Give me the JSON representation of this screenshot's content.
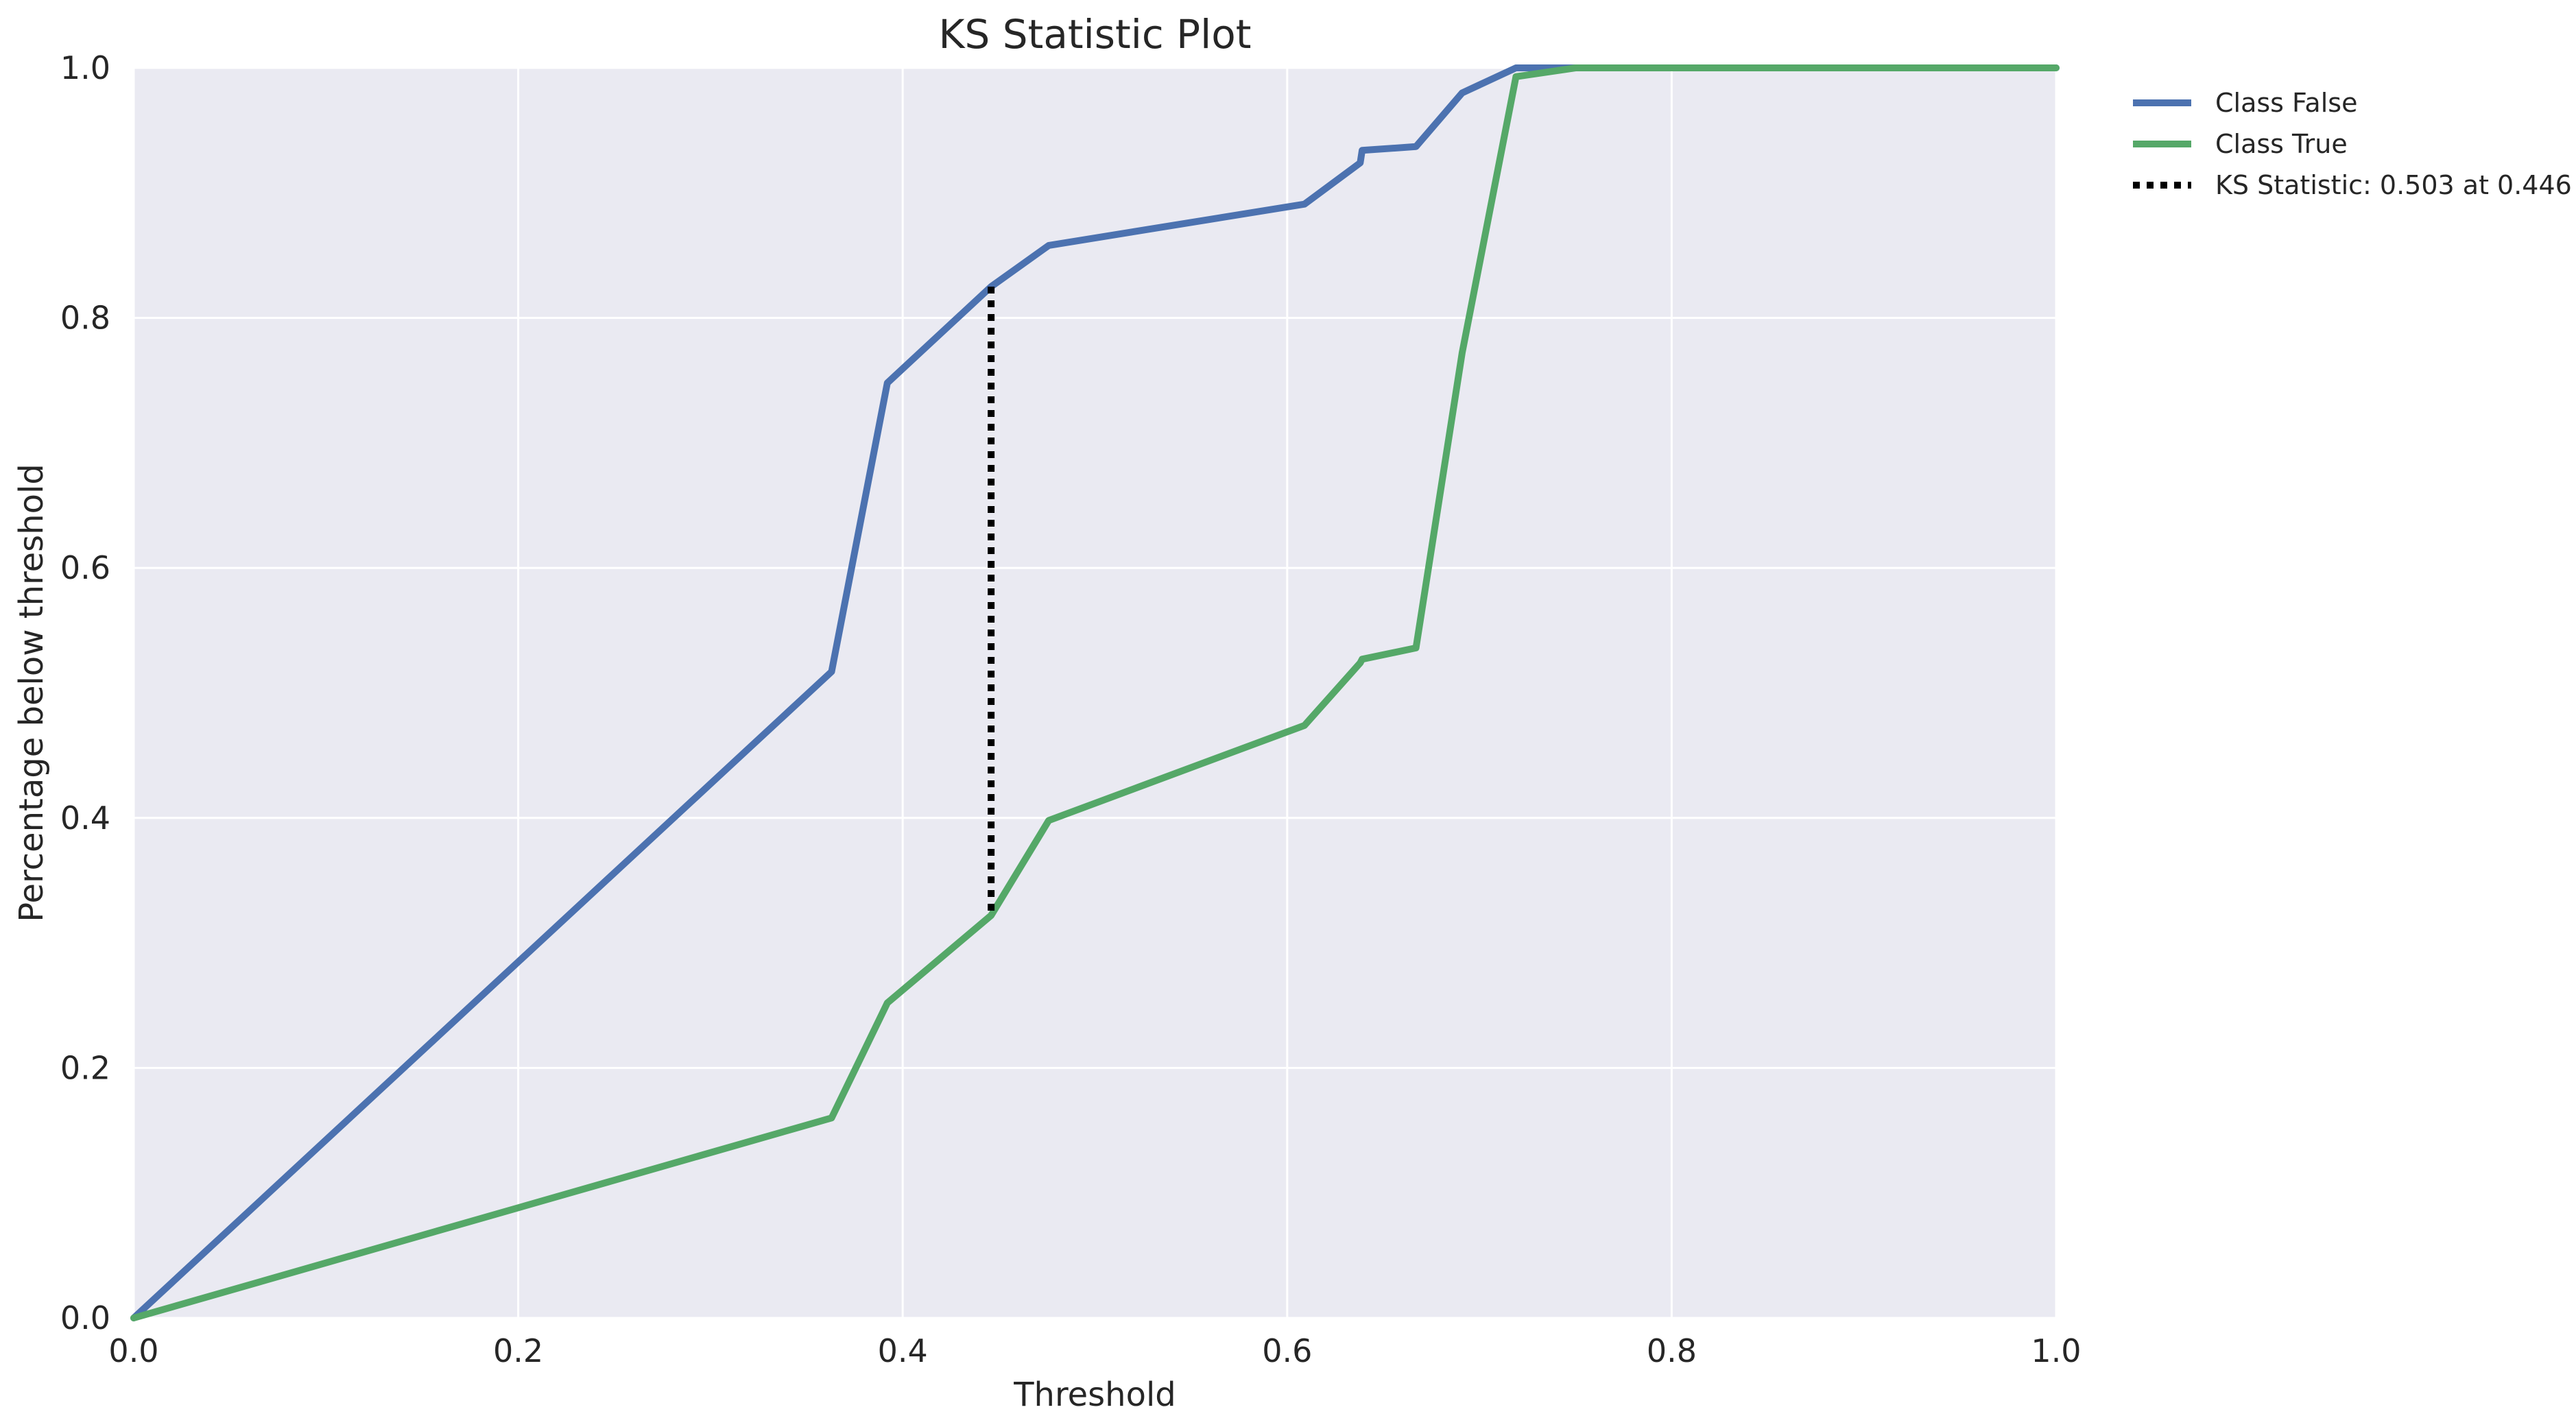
{
  "chart_data": {
    "type": "line",
    "title": "KS Statistic Plot",
    "xlabel": "Threshold",
    "ylabel": "Percentage below threshold",
    "xlim": [
      0.0,
      1.0
    ],
    "ylim": [
      0.0,
      1.0
    ],
    "x_ticks": [
      "0.0",
      "0.2",
      "0.4",
      "0.6",
      "0.8",
      "1.0"
    ],
    "y_ticks": [
      "0.0",
      "0.2",
      "0.4",
      "0.6",
      "0.8",
      "1.0"
    ],
    "grid": true,
    "legend_position": "outside-top-right",
    "background_color": "#EAEAF2",
    "grid_color": "#FFFFFF",
    "series": [
      {
        "name": "Class False",
        "color": "#4C72B0",
        "style": "solid",
        "x": [
          0.0,
          0.363,
          0.392,
          0.446,
          0.476,
          0.609,
          0.638,
          0.639,
          0.667,
          0.691,
          0.719,
          0.73,
          1.0
        ],
        "y": [
          0.0,
          0.517,
          0.748,
          0.825,
          0.858,
          0.891,
          0.924,
          0.934,
          0.937,
          0.98,
          1.0,
          1.0,
          1.0
        ]
      },
      {
        "name": "Class True",
        "color": "#55A868",
        "style": "solid",
        "x": [
          0.0,
          0.363,
          0.392,
          0.446,
          0.476,
          0.609,
          0.638,
          0.639,
          0.667,
          0.691,
          0.719,
          0.75,
          1.0
        ],
        "y": [
          0.0,
          0.16,
          0.252,
          0.322,
          0.398,
          0.474,
          0.524,
          0.527,
          0.536,
          0.772,
          0.993,
          1.0,
          1.0
        ]
      }
    ],
    "ks_statistic": {
      "label": "KS Statistic: 0.503 at 0.446",
      "x": 0.446,
      "y_min": 0.322,
      "y_max": 0.825,
      "color": "#000000",
      "style": "dotted"
    }
  }
}
